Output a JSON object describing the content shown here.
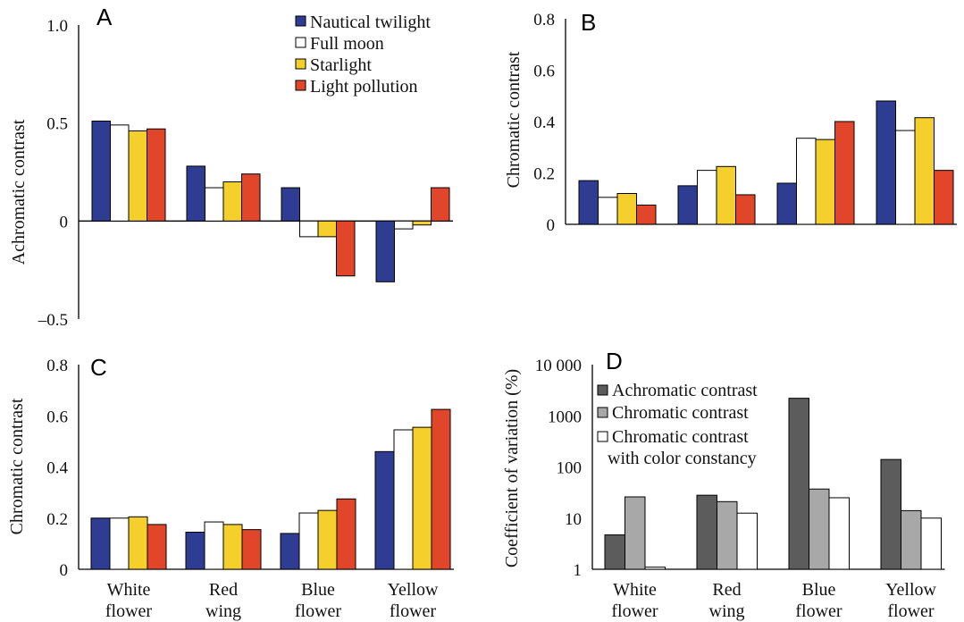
{
  "chart_data": [
    {
      "panel": "A",
      "type": "bar",
      "ylabel": "Achromatic contrast",
      "ylim": [
        -0.5,
        1.0
      ],
      "yticks": [
        {
          "v": 1.0,
          "t": "1.0"
        },
        {
          "v": 0.5,
          "t": "0.5"
        },
        {
          "v": 0,
          "t": "0"
        },
        {
          "v": -0.5,
          "t": "–0.5"
        }
      ],
      "categories": [
        "White flower",
        "Red wing",
        "Blue flower",
        "Yellow flower"
      ],
      "legend_position": "top-right",
      "series": [
        {
          "name": "Nautical twilight",
          "color": "#2e3d91",
          "values": [
            0.51,
            0.28,
            0.17,
            -0.31
          ]
        },
        {
          "name": "Full moon",
          "color": "#ffffff",
          "values": [
            0.49,
            0.17,
            -0.08,
            -0.04
          ]
        },
        {
          "name": "Starlight",
          "color": "#f5cf2b",
          "values": [
            0.46,
            0.2,
            -0.08,
            -0.02
          ]
        },
        {
          "name": "Light pollution",
          "color": "#e2462a",
          "values": [
            0.47,
            0.24,
            -0.28,
            0.17
          ]
        }
      ]
    },
    {
      "panel": "B",
      "type": "bar",
      "ylabel": "Chromatic contrast",
      "ylim": [
        0,
        0.8
      ],
      "yticks": [
        {
          "v": 0.8,
          "t": "0.8"
        },
        {
          "v": 0.6,
          "t": "0.6"
        },
        {
          "v": 0.4,
          "t": "0.4"
        },
        {
          "v": 0.2,
          "t": "0.2"
        },
        {
          "v": 0,
          "t": "0"
        }
      ],
      "categories": [
        "White flower",
        "Red wing",
        "Blue flower",
        "Yellow flower"
      ],
      "series": [
        {
          "name": "Nautical twilight",
          "values": [
            0.17,
            0.15,
            0.16,
            0.48
          ]
        },
        {
          "name": "Full moon",
          "values": [
            0.105,
            0.21,
            0.335,
            0.365
          ]
        },
        {
          "name": "Starlight",
          "values": [
            0.12,
            0.225,
            0.33,
            0.415
          ]
        },
        {
          "name": "Light pollution",
          "values": [
            0.075,
            0.115,
            0.4,
            0.21
          ]
        }
      ]
    },
    {
      "panel": "C",
      "type": "bar",
      "ylabel": "Chromatic contrast",
      "ylim": [
        0,
        0.8
      ],
      "yticks": [
        {
          "v": 0.8,
          "t": "0.8"
        },
        {
          "v": 0.6,
          "t": "0.6"
        },
        {
          "v": 0.4,
          "t": "0.4"
        },
        {
          "v": 0.2,
          "t": "0.2"
        },
        {
          "v": 0,
          "t": "0"
        }
      ],
      "categories": [
        "White flower",
        "Red wing",
        "Blue flower",
        "Yellow flower"
      ],
      "series": [
        {
          "name": "Nautical twilight",
          "values": [
            0.2,
            0.145,
            0.14,
            0.46
          ]
        },
        {
          "name": "Full moon",
          "values": [
            0.2,
            0.185,
            0.22,
            0.545
          ]
        },
        {
          "name": "Starlight",
          "values": [
            0.205,
            0.175,
            0.23,
            0.555
          ]
        },
        {
          "name": "Light pollution",
          "values": [
            0.175,
            0.155,
            0.275,
            0.625
          ]
        }
      ]
    },
    {
      "panel": "D",
      "type": "bar",
      "ylabel": "Coefficient of variation (%)",
      "yscale": "log",
      "ylim": [
        1,
        10000
      ],
      "yticks": [
        {
          "v": 10000,
          "t": "10 000"
        },
        {
          "v": 1000,
          "t": "1000"
        },
        {
          "v": 100,
          "t": "100"
        },
        {
          "v": 10,
          "t": "10"
        },
        {
          "v": 1,
          "t": "1"
        }
      ],
      "categories": [
        "White flower",
        "Red wing",
        "Blue flower",
        "Yellow flower"
      ],
      "legend_position": "top-left",
      "series": [
        {
          "name": "Achromatic contrast",
          "color": "#5c5c5c",
          "values": [
            4.7,
            28,
            2200,
            140
          ]
        },
        {
          "name": "Chromatic contrast",
          "color": "#a8a8a8",
          "values": [
            26,
            21,
            37,
            14
          ]
        },
        {
          "name": "Chromatic contrast with color constancy",
          "legend_lines": [
            "Chromatic contrast",
            "with color constancy"
          ],
          "color": "#ffffff",
          "values": [
            1.1,
            12.5,
            25,
            10
          ]
        }
      ]
    }
  ],
  "panels": {
    "A": {
      "label": "A",
      "ylabel": "Achromatic contrast"
    },
    "B": {
      "label": "B",
      "ylabel": "Chromatic contrast"
    },
    "C": {
      "label": "C",
      "ylabel": "Chromatic contrast"
    },
    "D": {
      "label": "D",
      "ylabel": "Coefficient of variation (%)"
    }
  },
  "category_labels": [
    {
      "line1": "White",
      "line2": "flower"
    },
    {
      "line1": "Red",
      "line2": "wing"
    },
    {
      "line1": "Blue",
      "line2": "flower"
    },
    {
      "line1": "Yellow",
      "line2": "flower"
    }
  ],
  "legend_A": [
    "Nautical twilight",
    "Full moon",
    "Starlight",
    "Light pollution"
  ],
  "legend_D": [
    "Achromatic contrast",
    "Chromatic contrast",
    "Chromatic contrast",
    "with color constancy"
  ]
}
